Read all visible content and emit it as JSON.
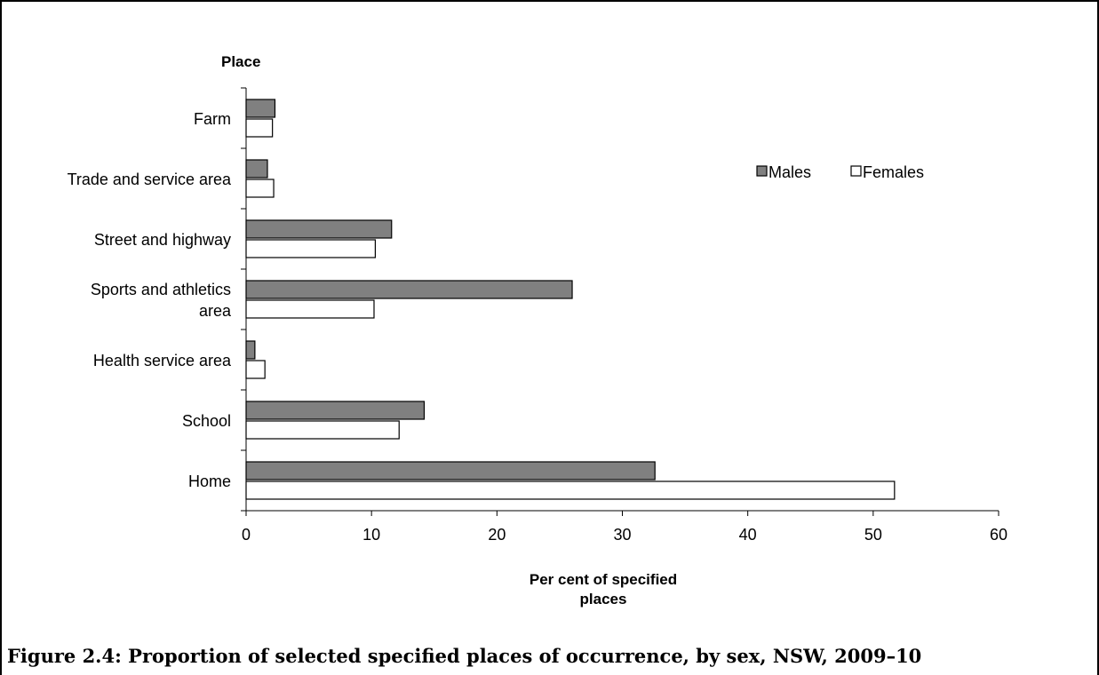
{
  "caption": "Figure 2.4: Proportion of selected specified places of occurrence, by sex, NSW, 2009–10",
  "chart_data": {
    "type": "bar",
    "orientation": "horizontal",
    "ylabel": "Place",
    "xlabel_lines": [
      "Per cent of specified",
      "places"
    ],
    "categories": [
      "Farm",
      "Trade and service area",
      "Street and highway",
      "Sports and athletics area",
      "Health service area",
      "School",
      "Home"
    ],
    "category_label_lines": [
      [
        "Farm"
      ],
      [
        "Trade and service area"
      ],
      [
        "Street and highway"
      ],
      [
        "Sports and athletics",
        "area"
      ],
      [
        "Health service area"
      ],
      [
        "School"
      ],
      [
        "Home"
      ]
    ],
    "series": [
      {
        "name": "Males",
        "color": "#808080",
        "values": [
          2.3,
          1.7,
          11.6,
          26.0,
          0.7,
          14.2,
          32.6
        ]
      },
      {
        "name": "Females",
        "color": "#ffffff",
        "values": [
          2.1,
          2.2,
          10.3,
          10.2,
          1.5,
          12.2,
          51.7
        ]
      }
    ],
    "xlim": [
      0,
      60
    ],
    "xticks": [
      "0",
      "10",
      "20",
      "30",
      "40",
      "50",
      "60"
    ],
    "legend_position": "upper-right",
    "grid": false
  }
}
